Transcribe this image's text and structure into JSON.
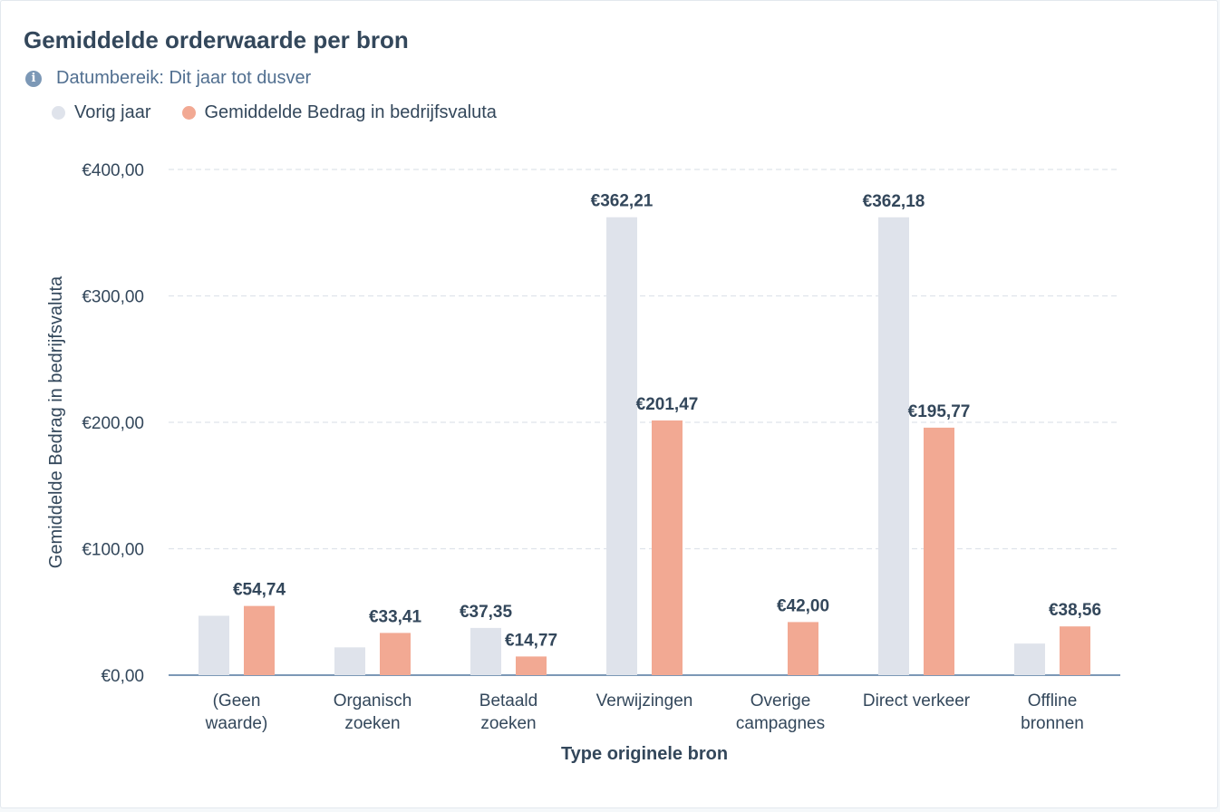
{
  "header": {
    "title": "Gemiddelde orderwaarde per bron",
    "date_range": "Datumbereik: Dit jaar tot dusver",
    "info_icon": "info-icon"
  },
  "colors": {
    "previous_year": "#dfe3eb",
    "current": "#f2a993",
    "axis": "#7c98b6",
    "grid": "#dfe3eb",
    "text": "#33475b"
  },
  "chart_data": {
    "type": "bar",
    "xlabel": "Type originele bron",
    "ylabel": "Gemiddelde Bedrag in bedrijfsvaluta",
    "ylim": [
      0,
      400
    ],
    "yticks": [
      0,
      100,
      200,
      300,
      400
    ],
    "ytick_labels": [
      "€0,00",
      "€100,00",
      "€200,00",
      "€300,00",
      "€400,00"
    ],
    "grid": true,
    "legend_position": "top-left",
    "categories": [
      [
        "(Geen",
        "waarde)"
      ],
      [
        "Organisch",
        "zoeken"
      ],
      [
        "Betaald",
        "zoeken"
      ],
      [
        "Verwijzingen"
      ],
      [
        "Overige",
        "campagnes"
      ],
      [
        "Direct verkeer"
      ],
      [
        "Offline",
        "bronnen"
      ]
    ],
    "series": [
      {
        "name": "Vorig jaar",
        "color": "#dfe3eb",
        "values": [
          47,
          22,
          37.35,
          362.21,
          0,
          362.18,
          25
        ],
        "labels": [
          "",
          "",
          "€37,35",
          "€362,21",
          "",
          "€362,18",
          ""
        ]
      },
      {
        "name": "Gemiddelde Bedrag in bedrijfsvaluta",
        "color": "#f2a993",
        "values": [
          54.74,
          33.41,
          14.77,
          201.47,
          42.0,
          195.77,
          38.56
        ],
        "labels": [
          "€54,74",
          "€33,41",
          "€14,77",
          "€201,47",
          "€42,00",
          "€195,77",
          "€38,56"
        ]
      }
    ]
  }
}
